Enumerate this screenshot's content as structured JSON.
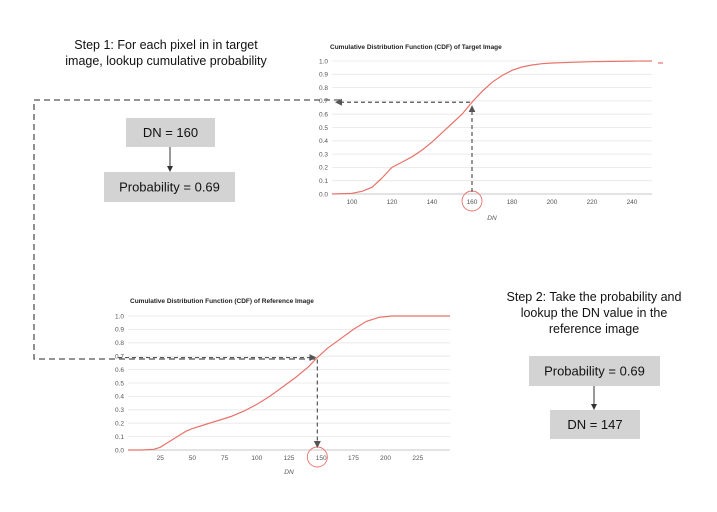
{
  "step1": {
    "lines": [
      "Step 1: For each pixel in in target",
      "image, lookup cumulative probability"
    ]
  },
  "step2": {
    "lines": [
      "Step 2: Take the probability and",
      "lookup the DN value in the",
      "reference image"
    ]
  },
  "boxes": {
    "dn_target": "DN = 160",
    "prob_target": "Probability = 0.69",
    "prob_ref": "Probability = 0.69",
    "dn_ref": "DN = 147"
  },
  "colors": {
    "curve": "#e8736b",
    "box_fill": "#d3d3d3",
    "dashed_arrow": "#555555",
    "highlight_circle": "#e8736b",
    "grid": "#e6e6e6"
  },
  "chart_data": [
    {
      "type": "line",
      "title": "Cumulative Distribution Function (CDF) of Target Image",
      "xlabel": "DN",
      "ylabel": "",
      "xlim": [
        90,
        250
      ],
      "ylim": [
        0,
        1
      ],
      "xticks": [
        100,
        120,
        140,
        160,
        180,
        200,
        220,
        240
      ],
      "yticks": [
        0.0,
        0.1,
        0.2,
        0.3,
        0.4,
        0.5,
        0.6,
        0.7,
        0.8,
        0.9,
        1.0
      ],
      "grid": true,
      "highlight_x": 160,
      "highlight_y": 0.69,
      "x": [
        90,
        100,
        105,
        110,
        115,
        120,
        125,
        130,
        135,
        140,
        145,
        150,
        155,
        160,
        165,
        170,
        175,
        180,
        185,
        190,
        195,
        200,
        210,
        220,
        230,
        240,
        250
      ],
      "y": [
        0.0,
        0.005,
        0.02,
        0.05,
        0.12,
        0.2,
        0.24,
        0.28,
        0.33,
        0.39,
        0.46,
        0.53,
        0.6,
        0.69,
        0.77,
        0.84,
        0.89,
        0.93,
        0.955,
        0.97,
        0.98,
        0.985,
        0.99,
        0.995,
        0.997,
        0.999,
        1.0
      ]
    },
    {
      "type": "line",
      "title": "Cumulative Distribution Function (CDF) of Reference Image",
      "xlabel": "DN",
      "ylabel": "",
      "xlim": [
        0,
        250
      ],
      "ylim": [
        0,
        1
      ],
      "xticks": [
        25,
        50,
        75,
        100,
        125,
        150,
        175,
        200,
        225
      ],
      "yticks": [
        0.0,
        0.1,
        0.2,
        0.3,
        0.4,
        0.5,
        0.6,
        0.7,
        0.8,
        0.9,
        1.0
      ],
      "grid": true,
      "highlight_x": 147,
      "highlight_y": 0.69,
      "x": [
        0,
        10,
        20,
        25,
        30,
        35,
        40,
        45,
        50,
        60,
        70,
        80,
        90,
        100,
        110,
        120,
        130,
        140,
        147,
        155,
        165,
        175,
        185,
        195,
        205,
        215,
        225,
        240,
        250
      ],
      "y": [
        0.0,
        0.0,
        0.005,
        0.02,
        0.05,
        0.08,
        0.11,
        0.14,
        0.16,
        0.19,
        0.22,
        0.25,
        0.29,
        0.34,
        0.4,
        0.47,
        0.54,
        0.62,
        0.69,
        0.76,
        0.83,
        0.9,
        0.96,
        0.99,
        1.0,
        1.0,
        1.0,
        1.0,
        1.0
      ]
    }
  ]
}
